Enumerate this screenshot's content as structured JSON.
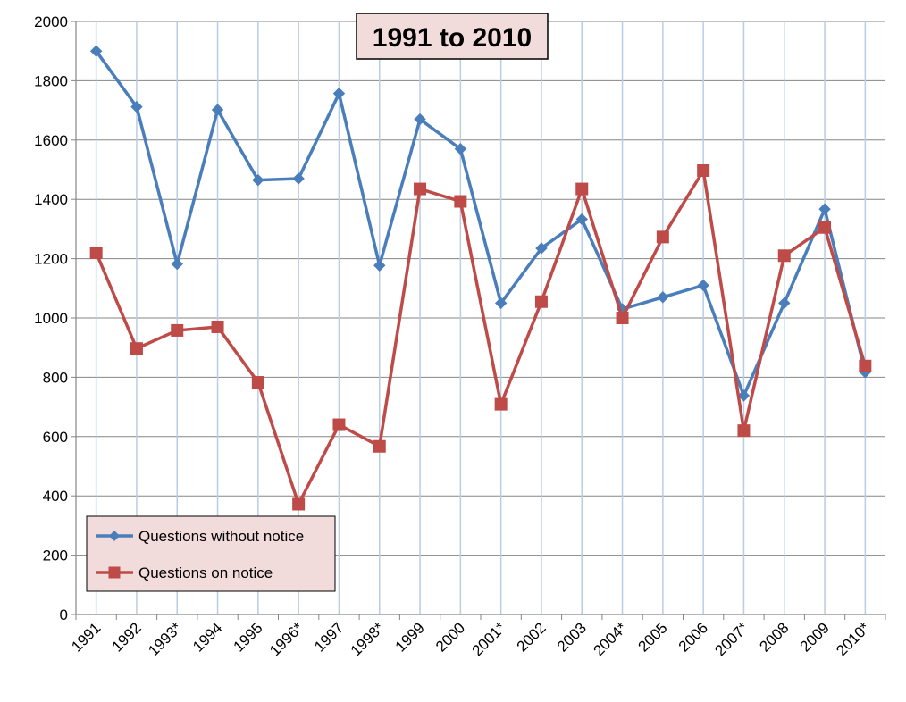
{
  "chart_data": {
    "type": "line",
    "title": "1991 to 2010",
    "categories": [
      "1991",
      "1992",
      "1993*",
      "1994",
      "1995",
      "1996*",
      "1997",
      "1998*",
      "1999",
      "2000",
      "2001*",
      "2002",
      "2003",
      "2004*",
      "2005",
      "2006",
      "2007*",
      "2008",
      "2009",
      "2010*"
    ],
    "series": [
      {
        "name": "Questions without notice",
        "color": "#4a7ebb",
        "marker": "diamond",
        "values": [
          1900,
          1712,
          1182,
          1702,
          1465,
          1470,
          1757,
          1177,
          1670,
          1570,
          1050,
          1235,
          1333,
          1030,
          1070,
          1110,
          738,
          1050,
          1367,
          817
        ]
      },
      {
        "name": "Questions on notice",
        "color": "#be4b48",
        "marker": "square",
        "values": [
          1220,
          897,
          958,
          970,
          783,
          372,
          640,
          567,
          1435,
          1393,
          709,
          1055,
          1435,
          1000,
          1273,
          1497,
          620,
          1210,
          1305,
          838
        ]
      }
    ],
    "ylim": [
      0,
      2000
    ],
    "yticks": [
      0,
      200,
      400,
      600,
      800,
      1000,
      1200,
      1400,
      1600,
      1800,
      2000
    ],
    "grid": true,
    "legend": "bottom-left"
  }
}
